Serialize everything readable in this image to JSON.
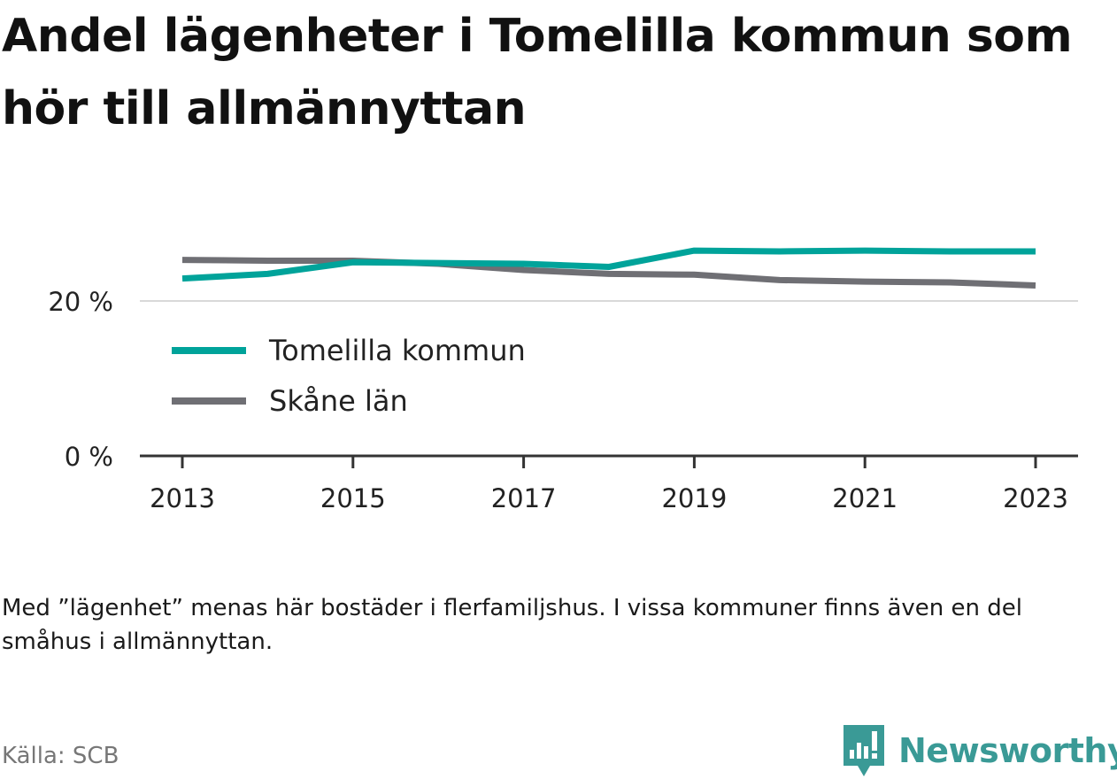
{
  "title": "Andel lägenheter i Tomelilla kommun som hör till allmännyttan",
  "note": "Med ”lägenhet” menas här bostäder i flerfamiljshus. I vissa kommuner finns även en del småhus i allmännyttan.",
  "source": "Källa: SCB",
  "brand": {
    "name": "Newsworthy",
    "color": "#3a9a96"
  },
  "chart_data": {
    "type": "line",
    "x": [
      2013,
      2014,
      2015,
      2016,
      2017,
      2018,
      2019,
      2020,
      2021,
      2022,
      2023
    ],
    "x_ticks": [
      "2013",
      "2015",
      "2017",
      "2019",
      "2021",
      "2023"
    ],
    "y_ticks": [
      "0 %",
      "20 %"
    ],
    "y_tick_values": [
      0,
      20
    ],
    "ylim": [
      0,
      30
    ],
    "grid": "horizontal",
    "legend_position": "inside-left",
    "series": [
      {
        "name": "Tomelilla kommun",
        "color": "#00a39a",
        "values": [
          22.9,
          23.5,
          25.0,
          24.9,
          24.8,
          24.4,
          26.5,
          26.4,
          26.5,
          26.4,
          26.4
        ]
      },
      {
        "name": "Skåne län",
        "color": "#6f6f74",
        "values": [
          25.3,
          25.2,
          25.2,
          24.8,
          24.0,
          23.5,
          23.4,
          22.7,
          22.5,
          22.4,
          22.0
        ]
      }
    ]
  }
}
